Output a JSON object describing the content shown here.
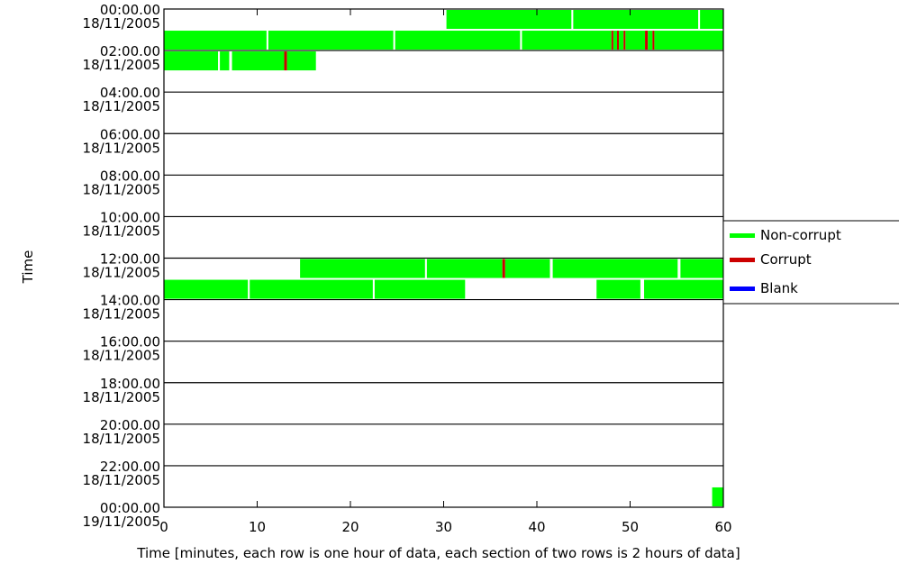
{
  "chart_data": {
    "type": "timeline",
    "ylabel": "Time",
    "xlabel": "Time [minutes, each row is one hour of data, each section of two rows is 2 hours of data]",
    "xlim": [
      0,
      60
    ],
    "x_ticks": [
      0,
      10,
      20,
      30,
      40,
      50,
      60
    ],
    "row_labels": [
      {
        "time": "00:00.00",
        "date": "18/11/2005"
      },
      {
        "time": "02:00.00",
        "date": "18/11/2005"
      },
      {
        "time": "04:00.00",
        "date": "18/11/2005"
      },
      {
        "time": "06:00.00",
        "date": "18/11/2005"
      },
      {
        "time": "08:00.00",
        "date": "18/11/2005"
      },
      {
        "time": "10:00.00",
        "date": "18/11/2005"
      },
      {
        "time": "12:00.00",
        "date": "18/11/2005"
      },
      {
        "time": "14:00.00",
        "date": "18/11/2005"
      },
      {
        "time": "16:00.00",
        "date": "18/11/2005"
      },
      {
        "time": "18:00.00",
        "date": "18/11/2005"
      },
      {
        "time": "20:00.00",
        "date": "18/11/2005"
      },
      {
        "time": "22:00.00",
        "date": "18/11/2005"
      },
      {
        "time": "00:00.00",
        "date": "19/11/2005"
      }
    ],
    "legend": {
      "placement": "right",
      "items": [
        {
          "label": "Non-corrupt",
          "color": "#00ff00"
        },
        {
          "label": "Corrupt",
          "color": "#cc0000"
        },
        {
          "label": "Blank",
          "color": "#0000ff"
        }
      ]
    },
    "segments": [
      {
        "hour": 0,
        "start": 30.3,
        "end": 43.7,
        "status": "Non-corrupt"
      },
      {
        "hour": 0,
        "start": 43.9,
        "end": 57.3,
        "status": "Non-corrupt"
      },
      {
        "hour": 0,
        "start": 57.5,
        "end": 60,
        "status": "Non-corrupt"
      },
      {
        "hour": 1,
        "start": 0,
        "end": 11.0,
        "status": "Non-corrupt"
      },
      {
        "hour": 1,
        "start": 11.2,
        "end": 24.6,
        "status": "Non-corrupt"
      },
      {
        "hour": 1,
        "start": 24.8,
        "end": 38.2,
        "status": "Non-corrupt"
      },
      {
        "hour": 1,
        "start": 38.4,
        "end": 48.0,
        "status": "Non-corrupt"
      },
      {
        "hour": 1,
        "start": 48.0,
        "end": 48.2,
        "status": "Corrupt"
      },
      {
        "hour": 1,
        "start": 48.2,
        "end": 48.6,
        "status": "Non-corrupt"
      },
      {
        "hour": 1,
        "start": 48.6,
        "end": 48.8,
        "status": "Corrupt"
      },
      {
        "hour": 1,
        "start": 48.8,
        "end": 49.3,
        "status": "Non-corrupt"
      },
      {
        "hour": 1,
        "start": 49.3,
        "end": 49.5,
        "status": "Corrupt"
      },
      {
        "hour": 1,
        "start": 49.5,
        "end": 51.6,
        "status": "Non-corrupt"
      },
      {
        "hour": 1,
        "start": 51.6,
        "end": 51.9,
        "status": "Corrupt"
      },
      {
        "hour": 1,
        "start": 51.9,
        "end": 52.4,
        "status": "Non-corrupt"
      },
      {
        "hour": 1,
        "start": 52.4,
        "end": 52.6,
        "status": "Corrupt"
      },
      {
        "hour": 1,
        "start": 52.6,
        "end": 60,
        "status": "Non-corrupt"
      },
      {
        "hour": 2,
        "start": 0,
        "end": 5.8,
        "status": "Non-corrupt"
      },
      {
        "hour": 2,
        "start": 6.0,
        "end": 7.0,
        "status": "Non-corrupt"
      },
      {
        "hour": 2,
        "start": 7.3,
        "end": 12.9,
        "status": "Non-corrupt"
      },
      {
        "hour": 2,
        "start": 12.9,
        "end": 13.2,
        "status": "Corrupt"
      },
      {
        "hour": 2,
        "start": 13.2,
        "end": 16.3,
        "status": "Non-corrupt"
      },
      {
        "hour": 12,
        "start": 14.6,
        "end": 28.0,
        "status": "Non-corrupt"
      },
      {
        "hour": 12,
        "start": 28.2,
        "end": 36.3,
        "status": "Non-corrupt"
      },
      {
        "hour": 12,
        "start": 36.3,
        "end": 36.6,
        "status": "Corrupt"
      },
      {
        "hour": 12,
        "start": 36.6,
        "end": 41.4,
        "status": "Non-corrupt"
      },
      {
        "hour": 12,
        "start": 41.7,
        "end": 55.1,
        "status": "Non-corrupt"
      },
      {
        "hour": 12,
        "start": 55.4,
        "end": 60,
        "status": "Non-corrupt"
      },
      {
        "hour": 13,
        "start": 0,
        "end": 9.0,
        "status": "Non-corrupt"
      },
      {
        "hour": 13,
        "start": 9.2,
        "end": 22.4,
        "status": "Non-corrupt"
      },
      {
        "hour": 13,
        "start": 22.6,
        "end": 32.3,
        "status": "Non-corrupt"
      },
      {
        "hour": 13,
        "start": 46.4,
        "end": 51.1,
        "status": "Non-corrupt"
      },
      {
        "hour": 13,
        "start": 51.5,
        "end": 60,
        "status": "Non-corrupt"
      },
      {
        "hour": 23,
        "start": 58.8,
        "end": 60,
        "status": "Non-corrupt"
      }
    ]
  }
}
